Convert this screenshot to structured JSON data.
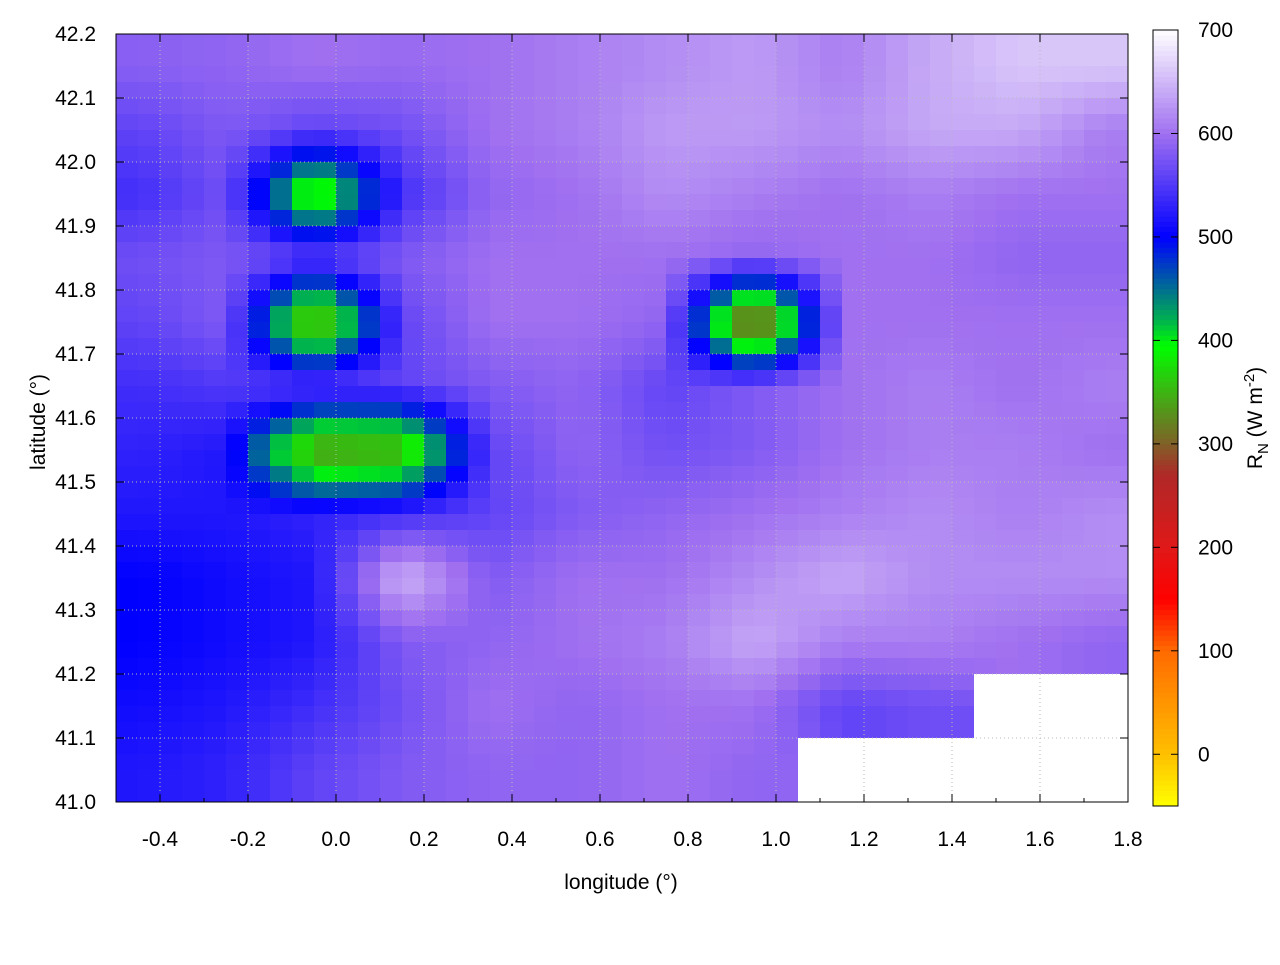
{
  "chart_data": {
    "type": "heatmap",
    "xlabel": "longitude (°)",
    "ylabel": "latitude (°)",
    "colorbar_label": "R",
    "colorbar_label_sub": "N",
    "colorbar_label_unit": " (W m",
    "colorbar_label_sup": "-2",
    "colorbar_label_end": ")",
    "xlim": [
      -0.5,
      1.8
    ],
    "ylim": [
      41.0,
      42.2
    ],
    "clim": [
      -50,
      700
    ],
    "grid": true,
    "x_ticks": [
      "-0.4",
      "-0.2",
      "0.0",
      "0.2",
      "0.4",
      "0.6",
      "0.8",
      "1.0",
      "1.2",
      "1.4",
      "1.6",
      "1.8"
    ],
    "y_ticks": [
      "41.0",
      "41.1",
      "41.2",
      "41.3",
      "41.4",
      "41.5",
      "41.6",
      "41.7",
      "41.8",
      "41.9",
      "42.0",
      "42.1",
      "42.2"
    ],
    "colorbar_ticks": [
      "0",
      "100",
      "200",
      "300",
      "400",
      "500",
      "600",
      "700"
    ],
    "colormap": [
      {
        "v": -50,
        "c": "#ffff00"
      },
      {
        "v": 0,
        "c": "#ffc000"
      },
      {
        "v": 100,
        "c": "#ff6a00"
      },
      {
        "v": 150,
        "c": "#ff0000"
      },
      {
        "v": 200,
        "c": "#e01818"
      },
      {
        "v": 270,
        "c": "#b02828"
      },
      {
        "v": 300,
        "c": "#806028"
      },
      {
        "v": 395,
        "c": "#00ff00"
      },
      {
        "v": 420,
        "c": "#00b050"
      },
      {
        "v": 500,
        "c": "#0000ff"
      },
      {
        "v": 600,
        "c": "#a070f0"
      },
      {
        "v": 700,
        "c": "#ffffff"
      }
    ],
    "lon": [
      -0.45,
      -0.25,
      -0.05,
      0.15,
      0.35,
      0.55,
      0.75,
      0.95,
      1.15,
      1.35,
      1.55,
      1.75
    ],
    "lat": [
      42.15,
      42.05,
      41.95,
      41.85,
      41.75,
      41.65,
      41.55,
      41.45,
      41.35,
      41.25,
      41.15,
      41.05
    ],
    "values": [
      [
        585,
        590,
        600,
        595,
        600,
        610,
        620,
        630,
        610,
        640,
        660,
        660
      ],
      [
        560,
        580,
        560,
        570,
        600,
        610,
        630,
        630,
        620,
        640,
        640,
        610
      ],
      [
        540,
        570,
        350,
        540,
        590,
        600,
        620,
        610,
        600,
        610,
        600,
        600
      ],
      [
        570,
        580,
        560,
        580,
        600,
        600,
        600,
        590,
        600,
        600,
        590,
        590
      ],
      [
        560,
        580,
        300,
        560,
        600,
        600,
        590,
        250,
        600,
        600,
        600,
        600
      ],
      [
        540,
        550,
        560,
        560,
        580,
        590,
        560,
        580,
        600,
        610,
        600,
        610
      ],
      [
        530,
        520,
        320,
        330,
        560,
        590,
        570,
        580,
        600,
        610,
        610,
        600
      ],
      [
        520,
        520,
        530,
        540,
        560,
        580,
        590,
        600,
        610,
        620,
        610,
        620
      ],
      [
        500,
        510,
        520,
        650,
        580,
        600,
        600,
        620,
        640,
        620,
        620,
        620
      ],
      [
        500,
        510,
        520,
        580,
        590,
        600,
        610,
        640,
        610,
        610,
        600,
        590
      ],
      [
        510,
        520,
        540,
        570,
        600,
        590,
        600,
        600,
        560,
        570,
        null,
        null
      ],
      [
        520,
        530,
        560,
        580,
        590,
        590,
        600,
        590,
        null,
        null,
        null,
        null
      ]
    ]
  }
}
